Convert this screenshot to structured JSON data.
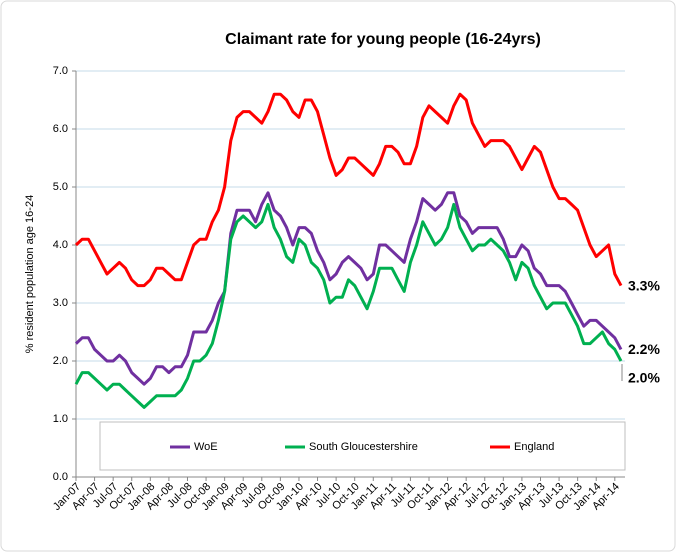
{
  "chart_data": {
    "type": "line",
    "title": "Claimant rate for young people (16-24yrs)",
    "y_label": "% resident population age 16-24",
    "categories": [
      "Jan-07",
      null,
      null,
      "Apr-07",
      null,
      null,
      "Jul-07",
      null,
      null,
      "Oct-07",
      null,
      null,
      "Jan-08",
      null,
      null,
      "Apr-08",
      null,
      null,
      "Jul-08",
      null,
      null,
      "Oct-08",
      null,
      null,
      "Jan-09",
      null,
      null,
      "Apr-09",
      null,
      null,
      "Jul-09",
      null,
      null,
      "Oct-09",
      null,
      null,
      "Jan-10",
      null,
      null,
      "Apr-10",
      null,
      null,
      "Jul-10",
      null,
      null,
      "Oct-10",
      null,
      null,
      "Jan-11",
      null,
      null,
      "Apr-11",
      null,
      null,
      "Jul-11",
      null,
      null,
      "Oct-11",
      null,
      null,
      "Jan-12",
      null,
      null,
      "Apr-12",
      null,
      null,
      "Jul-12",
      null,
      null,
      "Oct-12",
      null,
      null,
      "Jan-13",
      null,
      null,
      "Apr-13",
      null,
      null,
      "Jul-13",
      null,
      null,
      "Oct-13",
      null,
      null,
      "Jan-14",
      null,
      null,
      "Apr-14",
      null
    ],
    "ylim": [
      0,
      7
    ],
    "yticks": [
      {
        "value": 0,
        "label": "0.0"
      },
      {
        "value": 1,
        "label": "1.0"
      },
      {
        "value": 2,
        "label": "2.0"
      },
      {
        "value": 3,
        "label": "3.0"
      },
      {
        "value": 4,
        "label": "4.0"
      },
      {
        "value": 5,
        "label": "5.0"
      },
      {
        "value": 6,
        "label": "6.0"
      },
      {
        "value": 7,
        "label": "7.0"
      }
    ],
    "grid": true,
    "legend": "bottom",
    "series": [
      {
        "name": "WoE",
        "color": "#7030a0",
        "values": [
          2.3,
          2.4,
          2.4,
          2.2,
          2.1,
          2.0,
          2.0,
          2.1,
          2.0,
          1.8,
          1.7,
          1.6,
          1.7,
          1.9,
          1.9,
          1.8,
          1.9,
          1.9,
          2.1,
          2.5,
          2.5,
          2.5,
          2.7,
          3.0,
          3.2,
          4.2,
          4.6,
          4.6,
          4.6,
          4.4,
          4.7,
          4.9,
          4.6,
          4.5,
          4.3,
          4.0,
          4.3,
          4.3,
          4.2,
          3.9,
          3.7,
          3.4,
          3.5,
          3.7,
          3.8,
          3.7,
          3.6,
          3.4,
          3.5,
          4.0,
          4.0,
          3.9,
          3.8,
          3.7,
          4.1,
          4.4,
          4.8,
          4.7,
          4.6,
          4.7,
          4.9,
          4.9,
          4.5,
          4.4,
          4.2,
          4.3,
          4.3,
          4.3,
          4.3,
          4.1,
          3.8,
          3.8,
          4.0,
          3.9,
          3.6,
          3.5,
          3.3,
          3.3,
          3.3,
          3.2,
          3.0,
          2.8,
          2.6,
          2.7,
          2.7,
          2.6,
          2.5,
          2.4,
          2.2
        ],
        "value_labels": [
          null,
          null,
          null,
          null,
          null,
          null,
          null,
          null,
          null,
          null,
          null,
          null,
          null,
          null,
          null,
          null,
          null,
          null,
          null,
          null,
          null,
          null,
          null,
          null,
          null,
          null,
          null,
          null,
          null,
          null,
          null,
          null,
          null,
          null,
          null,
          null,
          null,
          null,
          null,
          null,
          null,
          null,
          null,
          null,
          null,
          null,
          null,
          null,
          null,
          null,
          null,
          null,
          null,
          null,
          null,
          null,
          null,
          null,
          null,
          null,
          null,
          null,
          null,
          null,
          null,
          null,
          null,
          null,
          null,
          null,
          null,
          null,
          null,
          null,
          null,
          null,
          null,
          null,
          null,
          null,
          null,
          null,
          null,
          null,
          null,
          null,
          null,
          null,
          "2.2%"
        ]
      },
      {
        "name": "South Gloucestershire",
        "color": "#00b050",
        "values": [
          1.6,
          1.8,
          1.8,
          1.7,
          1.6,
          1.5,
          1.6,
          1.6,
          1.5,
          1.4,
          1.3,
          1.2,
          1.3,
          1.4,
          1.4,
          1.4,
          1.4,
          1.5,
          1.7,
          2.0,
          2.0,
          2.1,
          2.3,
          2.7,
          3.2,
          4.1,
          4.4,
          4.5,
          4.4,
          4.3,
          4.4,
          4.7,
          4.3,
          4.1,
          3.8,
          3.7,
          4.1,
          4.0,
          3.7,
          3.6,
          3.4,
          3.0,
          3.1,
          3.1,
          3.4,
          3.3,
          3.1,
          2.9,
          3.2,
          3.6,
          3.6,
          3.6,
          3.4,
          3.2,
          3.7,
          4.0,
          4.4,
          4.2,
          4.0,
          4.1,
          4.3,
          4.7,
          4.3,
          4.1,
          3.9,
          4.0,
          4.0,
          4.1,
          4.0,
          3.9,
          3.7,
          3.4,
          3.7,
          3.6,
          3.3,
          3.1,
          2.9,
          3.0,
          3.0,
          3.0,
          2.8,
          2.6,
          2.3,
          2.3,
          2.4,
          2.5,
          2.3,
          2.2,
          2.0
        ],
        "value_labels": [
          null,
          null,
          null,
          null,
          null,
          null,
          null,
          null,
          null,
          null,
          null,
          null,
          null,
          null,
          null,
          null,
          null,
          null,
          null,
          null,
          null,
          null,
          null,
          null,
          null,
          null,
          null,
          null,
          null,
          null,
          null,
          null,
          null,
          null,
          null,
          null,
          null,
          null,
          null,
          null,
          null,
          null,
          null,
          null,
          null,
          null,
          null,
          null,
          null,
          null,
          null,
          null,
          null,
          null,
          null,
          null,
          null,
          null,
          null,
          null,
          null,
          null,
          null,
          null,
          null,
          null,
          null,
          null,
          null,
          null,
          null,
          null,
          null,
          null,
          null,
          null,
          null,
          null,
          null,
          null,
          null,
          null,
          null,
          null,
          null,
          null,
          null,
          null,
          "2.0%"
        ]
      },
      {
        "name": "England",
        "color": "#ff0000",
        "values": [
          4.0,
          4.1,
          4.1,
          3.9,
          3.7,
          3.5,
          3.6,
          3.7,
          3.6,
          3.4,
          3.3,
          3.3,
          3.4,
          3.6,
          3.6,
          3.5,
          3.4,
          3.4,
          3.7,
          4.0,
          4.1,
          4.1,
          4.4,
          4.6,
          5.0,
          5.8,
          6.2,
          6.3,
          6.3,
          6.2,
          6.1,
          6.3,
          6.6,
          6.6,
          6.5,
          6.3,
          6.2,
          6.5,
          6.5,
          6.3,
          5.9,
          5.5,
          5.2,
          5.3,
          5.5,
          5.5,
          5.4,
          5.3,
          5.2,
          5.4,
          5.7,
          5.7,
          5.6,
          5.4,
          5.4,
          5.7,
          6.2,
          6.4,
          6.3,
          6.2,
          6.1,
          6.4,
          6.6,
          6.5,
          6.1,
          5.9,
          5.7,
          5.8,
          5.8,
          5.8,
          5.7,
          5.5,
          5.3,
          5.5,
          5.7,
          5.6,
          5.3,
          5.0,
          4.8,
          4.8,
          4.7,
          4.6,
          4.3,
          4.0,
          3.8,
          3.9,
          4.0,
          3.5,
          3.3
        ],
        "value_labels": [
          null,
          null,
          null,
          null,
          null,
          null,
          null,
          null,
          null,
          null,
          null,
          null,
          null,
          null,
          null,
          null,
          null,
          null,
          null,
          null,
          null,
          null,
          null,
          null,
          null,
          null,
          null,
          null,
          null,
          null,
          null,
          null,
          null,
          null,
          null,
          null,
          null,
          null,
          null,
          null,
          null,
          null,
          null,
          null,
          null,
          null,
          null,
          null,
          null,
          null,
          null,
          null,
          null,
          null,
          null,
          null,
          null,
          null,
          null,
          null,
          null,
          null,
          null,
          null,
          null,
          null,
          null,
          null,
          null,
          null,
          null,
          null,
          null,
          null,
          null,
          null,
          null,
          null,
          null,
          null,
          null,
          null,
          null,
          null,
          null,
          null,
          null,
          null,
          "3.3%"
        ]
      }
    ]
  }
}
